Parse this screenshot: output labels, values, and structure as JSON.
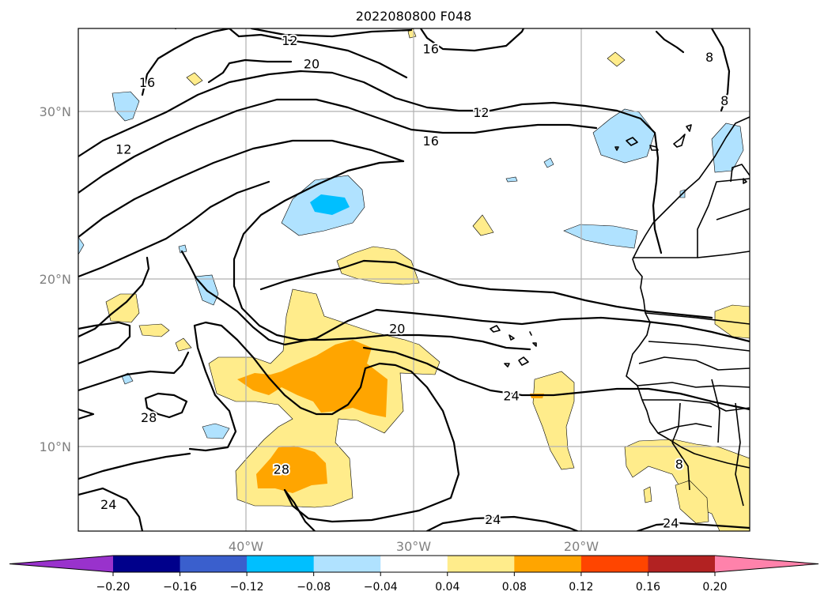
{
  "chart_data": {
    "type": "contour-map",
    "title": "2022080800 F048",
    "xlim": [
      -50,
      -10
    ],
    "ylim": [
      5,
      35
    ],
    "lon_ticks": [
      -40,
      -30,
      -20
    ],
    "lon_tick_labels": [
      "40°W",
      "30°W",
      "20°W"
    ],
    "lat_ticks": [
      10,
      20,
      30
    ],
    "lat_tick_labels": [
      "10°N",
      "20°N",
      "30°N"
    ],
    "grid": true,
    "colorbar": {
      "levels": [
        -0.2,
        -0.16,
        -0.12,
        -0.08,
        -0.04,
        0.04,
        0.08,
        0.12,
        0.16,
        0.2
      ],
      "tick_labels": [
        "−0.20",
        "−0.16",
        "−0.12",
        "−0.08",
        "−0.04",
        "0.04",
        "0.08",
        "0.12",
        "0.16",
        "0.20"
      ],
      "colors": [
        "#9932cc",
        "#00008b",
        "#3a5fcd",
        "#00bfff",
        "#b0e2ff",
        "#ffffff",
        "#ffec8b",
        "#ffa500",
        "#ff4500",
        "#b22222",
        "#ff82ab"
      ],
      "extend": "both"
    },
    "contour_labels": [
      {
        "text": "12",
        "lon": -37.4,
        "lat": 34.3
      },
      {
        "text": "20",
        "lon": -36.1,
        "lat": 32.9
      },
      {
        "text": "16",
        "lon": -29.0,
        "lat": 33.8
      },
      {
        "text": "8",
        "lon": -12.4,
        "lat": 33.3
      },
      {
        "text": "16",
        "lon": -45.9,
        "lat": 31.8
      },
      {
        "text": "8",
        "lon": -11.5,
        "lat": 30.7
      },
      {
        "text": "12",
        "lon": -26.0,
        "lat": 30.0
      },
      {
        "text": "16",
        "lon": -29.0,
        "lat": 28.3
      },
      {
        "text": "12",
        "lon": -47.3,
        "lat": 27.8
      },
      {
        "text": "20",
        "lon": -31.0,
        "lat": 17.1
      },
      {
        "text": "24",
        "lon": -24.2,
        "lat": 13.1
      },
      {
        "text": "28",
        "lon": -45.8,
        "lat": 11.8
      },
      {
        "text": "28",
        "lon": -37.9,
        "lat": 8.7
      },
      {
        "text": "8",
        "lon": -14.2,
        "lat": 9.0
      },
      {
        "text": "24",
        "lon": -48.2,
        "lat": 6.6
      },
      {
        "text": "24",
        "lon": -25.3,
        "lat": 5.7
      },
      {
        "text": "24",
        "lon": -14.7,
        "lat": 5.5
      }
    ]
  }
}
